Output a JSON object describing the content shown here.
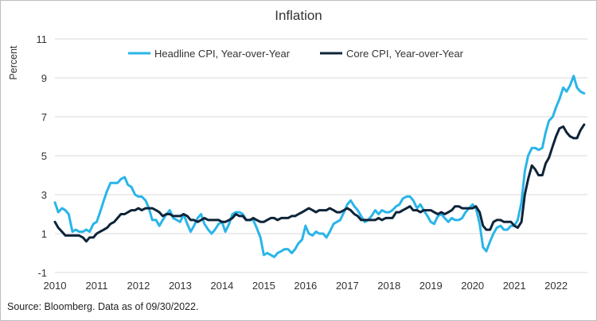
{
  "chart_data": {
    "type": "line",
    "title": "Inflation",
    "xlabel": "",
    "ylabel": "Percent",
    "xlim": [
      2010,
      2022.75
    ],
    "ylim": [
      -1,
      11
    ],
    "y_ticks": [
      "11",
      "9",
      "7",
      "5",
      "3",
      "1",
      "-1"
    ],
    "x_ticks": [
      "2010",
      "2011",
      "2012",
      "2013",
      "2014",
      "2015",
      "2016",
      "2017",
      "2018",
      "2019",
      "2020",
      "2021",
      "2022"
    ],
    "grid": "horizontal",
    "legend": "top-center",
    "series": [
      {
        "name": "Headline CPI, Year-over-Year",
        "color": "#29b5e8",
        "points": [
          [
            2010.0,
            2.6
          ],
          [
            2010.08,
            2.1
          ],
          [
            2010.17,
            2.3
          ],
          [
            2010.25,
            2.2
          ],
          [
            2010.33,
            2.0
          ],
          [
            2010.42,
            1.1
          ],
          [
            2010.5,
            1.2
          ],
          [
            2010.58,
            1.1
          ],
          [
            2010.67,
            1.1
          ],
          [
            2010.75,
            1.2
          ],
          [
            2010.83,
            1.1
          ],
          [
            2010.92,
            1.5
          ],
          [
            2011.0,
            1.6
          ],
          [
            2011.08,
            2.1
          ],
          [
            2011.17,
            2.7
          ],
          [
            2011.25,
            3.2
          ],
          [
            2011.33,
            3.6
          ],
          [
            2011.42,
            3.6
          ],
          [
            2011.5,
            3.6
          ],
          [
            2011.58,
            3.8
          ],
          [
            2011.67,
            3.9
          ],
          [
            2011.75,
            3.5
          ],
          [
            2011.83,
            3.4
          ],
          [
            2011.92,
            3.0
          ],
          [
            2012.0,
            2.9
          ],
          [
            2012.08,
            2.9
          ],
          [
            2012.17,
            2.7
          ],
          [
            2012.25,
            2.3
          ],
          [
            2012.33,
            1.7
          ],
          [
            2012.42,
            1.7
          ],
          [
            2012.5,
            1.4
          ],
          [
            2012.58,
            1.7
          ],
          [
            2012.67,
            2.0
          ],
          [
            2012.75,
            2.2
          ],
          [
            2012.83,
            1.8
          ],
          [
            2012.92,
            1.7
          ],
          [
            2013.0,
            1.6
          ],
          [
            2013.08,
            2.0
          ],
          [
            2013.17,
            1.5
          ],
          [
            2013.25,
            1.1
          ],
          [
            2013.33,
            1.4
          ],
          [
            2013.42,
            1.8
          ],
          [
            2013.5,
            2.0
          ],
          [
            2013.58,
            1.5
          ],
          [
            2013.67,
            1.2
          ],
          [
            2013.75,
            1.0
          ],
          [
            2013.83,
            1.2
          ],
          [
            2013.92,
            1.5
          ],
          [
            2014.0,
            1.6
          ],
          [
            2014.08,
            1.1
          ],
          [
            2014.17,
            1.5
          ],
          [
            2014.25,
            2.0
          ],
          [
            2014.33,
            2.1
          ],
          [
            2014.42,
            2.1
          ],
          [
            2014.5,
            2.0
          ],
          [
            2014.58,
            1.7
          ],
          [
            2014.67,
            1.7
          ],
          [
            2014.75,
            1.7
          ],
          [
            2014.83,
            1.3
          ],
          [
            2014.92,
            0.8
          ],
          [
            2015.0,
            -0.1
          ],
          [
            2015.08,
            0.0
          ],
          [
            2015.17,
            -0.1
          ],
          [
            2015.25,
            -0.2
          ],
          [
            2015.33,
            0.0
          ],
          [
            2015.42,
            0.1
          ],
          [
            2015.5,
            0.2
          ],
          [
            2015.58,
            0.2
          ],
          [
            2015.67,
            0.0
          ],
          [
            2015.75,
            0.2
          ],
          [
            2015.83,
            0.5
          ],
          [
            2015.92,
            0.7
          ],
          [
            2016.0,
            1.4
          ],
          [
            2016.08,
            1.0
          ],
          [
            2016.17,
            0.9
          ],
          [
            2016.25,
            1.1
          ],
          [
            2016.33,
            1.0
          ],
          [
            2016.42,
            1.0
          ],
          [
            2016.5,
            0.8
          ],
          [
            2016.58,
            1.1
          ],
          [
            2016.67,
            1.5
          ],
          [
            2016.75,
            1.6
          ],
          [
            2016.83,
            1.7
          ],
          [
            2016.92,
            2.1
          ],
          [
            2017.0,
            2.5
          ],
          [
            2017.08,
            2.7
          ],
          [
            2017.17,
            2.4
          ],
          [
            2017.25,
            2.2
          ],
          [
            2017.33,
            1.9
          ],
          [
            2017.42,
            1.6
          ],
          [
            2017.5,
            1.7
          ],
          [
            2017.58,
            1.9
          ],
          [
            2017.67,
            2.2
          ],
          [
            2017.75,
            2.0
          ],
          [
            2017.83,
            2.2
          ],
          [
            2017.92,
            2.1
          ],
          [
            2018.0,
            2.1
          ],
          [
            2018.08,
            2.2
          ],
          [
            2018.17,
            2.4
          ],
          [
            2018.25,
            2.5
          ],
          [
            2018.33,
            2.8
          ],
          [
            2018.42,
            2.9
          ],
          [
            2018.5,
            2.9
          ],
          [
            2018.58,
            2.7
          ],
          [
            2018.67,
            2.3
          ],
          [
            2018.75,
            2.5
          ],
          [
            2018.83,
            2.2
          ],
          [
            2018.92,
            1.9
          ],
          [
            2019.0,
            1.6
          ],
          [
            2019.08,
            1.5
          ],
          [
            2019.17,
            1.9
          ],
          [
            2019.25,
            2.0
          ],
          [
            2019.33,
            1.8
          ],
          [
            2019.42,
            1.6
          ],
          [
            2019.5,
            1.8
          ],
          [
            2019.58,
            1.7
          ],
          [
            2019.67,
            1.7
          ],
          [
            2019.75,
            1.8
          ],
          [
            2019.83,
            2.1
          ],
          [
            2019.92,
            2.3
          ],
          [
            2020.0,
            2.5
          ],
          [
            2020.08,
            2.3
          ],
          [
            2020.17,
            1.5
          ],
          [
            2020.25,
            0.3
          ],
          [
            2020.33,
            0.1
          ],
          [
            2020.42,
            0.6
          ],
          [
            2020.5,
            1.0
          ],
          [
            2020.58,
            1.3
          ],
          [
            2020.67,
            1.4
          ],
          [
            2020.75,
            1.2
          ],
          [
            2020.83,
            1.2
          ],
          [
            2020.92,
            1.4
          ],
          [
            2021.0,
            1.4
          ],
          [
            2021.08,
            1.7
          ],
          [
            2021.17,
            2.6
          ],
          [
            2021.25,
            4.2
          ],
          [
            2021.33,
            5.0
          ],
          [
            2021.42,
            5.4
          ],
          [
            2021.5,
            5.4
          ],
          [
            2021.58,
            5.3
          ],
          [
            2021.67,
            5.4
          ],
          [
            2021.75,
            6.2
          ],
          [
            2021.83,
            6.8
          ],
          [
            2021.92,
            7.0
          ],
          [
            2022.0,
            7.5
          ],
          [
            2022.08,
            7.9
          ],
          [
            2022.17,
            8.5
          ],
          [
            2022.25,
            8.3
          ],
          [
            2022.33,
            8.6
          ],
          [
            2022.42,
            9.1
          ],
          [
            2022.5,
            8.5
          ],
          [
            2022.58,
            8.3
          ],
          [
            2022.67,
            8.2
          ]
        ]
      },
      {
        "name": "Core CPI, Year-over-Year",
        "color": "#0d2438",
        "points": [
          [
            2010.0,
            1.6
          ],
          [
            2010.08,
            1.3
          ],
          [
            2010.17,
            1.1
          ],
          [
            2010.25,
            0.9
          ],
          [
            2010.33,
            0.9
          ],
          [
            2010.42,
            0.9
          ],
          [
            2010.5,
            0.9
          ],
          [
            2010.58,
            0.9
          ],
          [
            2010.67,
            0.8
          ],
          [
            2010.75,
            0.6
          ],
          [
            2010.83,
            0.8
          ],
          [
            2010.92,
            0.8
          ],
          [
            2011.0,
            1.0
          ],
          [
            2011.08,
            1.1
          ],
          [
            2011.17,
            1.2
          ],
          [
            2011.25,
            1.3
          ],
          [
            2011.33,
            1.5
          ],
          [
            2011.42,
            1.6
          ],
          [
            2011.5,
            1.8
          ],
          [
            2011.58,
            2.0
          ],
          [
            2011.67,
            2.0
          ],
          [
            2011.75,
            2.1
          ],
          [
            2011.83,
            2.2
          ],
          [
            2011.92,
            2.2
          ],
          [
            2012.0,
            2.3
          ],
          [
            2012.08,
            2.2
          ],
          [
            2012.17,
            2.3
          ],
          [
            2012.25,
            2.3
          ],
          [
            2012.33,
            2.3
          ],
          [
            2012.42,
            2.2
          ],
          [
            2012.5,
            2.1
          ],
          [
            2012.58,
            1.9
          ],
          [
            2012.67,
            2.0
          ],
          [
            2012.75,
            2.0
          ],
          [
            2012.83,
            1.9
          ],
          [
            2012.92,
            1.9
          ],
          [
            2013.0,
            1.9
          ],
          [
            2013.08,
            2.0
          ],
          [
            2013.17,
            1.9
          ],
          [
            2013.25,
            1.7
          ],
          [
            2013.33,
            1.7
          ],
          [
            2013.42,
            1.6
          ],
          [
            2013.5,
            1.7
          ],
          [
            2013.58,
            1.8
          ],
          [
            2013.67,
            1.7
          ],
          [
            2013.75,
            1.7
          ],
          [
            2013.83,
            1.7
          ],
          [
            2013.92,
            1.7
          ],
          [
            2014.0,
            1.6
          ],
          [
            2014.08,
            1.6
          ],
          [
            2014.17,
            1.7
          ],
          [
            2014.25,
            1.8
          ],
          [
            2014.33,
            2.0
          ],
          [
            2014.42,
            1.9
          ],
          [
            2014.5,
            1.9
          ],
          [
            2014.58,
            1.7
          ],
          [
            2014.67,
            1.7
          ],
          [
            2014.75,
            1.8
          ],
          [
            2014.83,
            1.7
          ],
          [
            2014.92,
            1.6
          ],
          [
            2015.0,
            1.6
          ],
          [
            2015.08,
            1.7
          ],
          [
            2015.17,
            1.8
          ],
          [
            2015.25,
            1.8
          ],
          [
            2015.33,
            1.7
          ],
          [
            2015.42,
            1.8
          ],
          [
            2015.5,
            1.8
          ],
          [
            2015.58,
            1.8
          ],
          [
            2015.67,
            1.9
          ],
          [
            2015.75,
            1.9
          ],
          [
            2015.83,
            2.0
          ],
          [
            2015.92,
            2.1
          ],
          [
            2016.0,
            2.2
          ],
          [
            2016.08,
            2.3
          ],
          [
            2016.17,
            2.2
          ],
          [
            2016.25,
            2.1
          ],
          [
            2016.33,
            2.2
          ],
          [
            2016.42,
            2.2
          ],
          [
            2016.5,
            2.2
          ],
          [
            2016.58,
            2.3
          ],
          [
            2016.67,
            2.2
          ],
          [
            2016.75,
            2.1
          ],
          [
            2016.83,
            2.1
          ],
          [
            2016.92,
            2.2
          ],
          [
            2017.0,
            2.3
          ],
          [
            2017.08,
            2.2
          ],
          [
            2017.17,
            2.0
          ],
          [
            2017.25,
            1.9
          ],
          [
            2017.33,
            1.7
          ],
          [
            2017.42,
            1.7
          ],
          [
            2017.5,
            1.7
          ],
          [
            2017.58,
            1.7
          ],
          [
            2017.67,
            1.7
          ],
          [
            2017.75,
            1.8
          ],
          [
            2017.83,
            1.7
          ],
          [
            2017.92,
            1.8
          ],
          [
            2018.0,
            1.8
          ],
          [
            2018.08,
            1.8
          ],
          [
            2018.17,
            2.1
          ],
          [
            2018.25,
            2.1
          ],
          [
            2018.33,
            2.2
          ],
          [
            2018.42,
            2.3
          ],
          [
            2018.5,
            2.4
          ],
          [
            2018.58,
            2.2
          ],
          [
            2018.67,
            2.2
          ],
          [
            2018.75,
            2.1
          ],
          [
            2018.83,
            2.2
          ],
          [
            2018.92,
            2.2
          ],
          [
            2019.0,
            2.2
          ],
          [
            2019.08,
            2.1
          ],
          [
            2019.17,
            2.0
          ],
          [
            2019.25,
            2.1
          ],
          [
            2019.33,
            2.0
          ],
          [
            2019.42,
            2.1
          ],
          [
            2019.5,
            2.2
          ],
          [
            2019.58,
            2.4
          ],
          [
            2019.67,
            2.4
          ],
          [
            2019.75,
            2.3
          ],
          [
            2019.83,
            2.3
          ],
          [
            2019.92,
            2.3
          ],
          [
            2020.0,
            2.3
          ],
          [
            2020.08,
            2.4
          ],
          [
            2020.17,
            2.1
          ],
          [
            2020.25,
            1.4
          ],
          [
            2020.33,
            1.2
          ],
          [
            2020.42,
            1.2
          ],
          [
            2020.5,
            1.6
          ],
          [
            2020.58,
            1.7
          ],
          [
            2020.67,
            1.7
          ],
          [
            2020.75,
            1.6
          ],
          [
            2020.83,
            1.6
          ],
          [
            2020.92,
            1.6
          ],
          [
            2021.0,
            1.4
          ],
          [
            2021.08,
            1.3
          ],
          [
            2021.17,
            1.6
          ],
          [
            2021.25,
            3.0
          ],
          [
            2021.33,
            3.8
          ],
          [
            2021.42,
            4.5
          ],
          [
            2021.5,
            4.3
          ],
          [
            2021.58,
            4.0
          ],
          [
            2021.67,
            4.0
          ],
          [
            2021.75,
            4.6
          ],
          [
            2021.83,
            4.9
          ],
          [
            2021.92,
            5.5
          ],
          [
            2022.0,
            6.0
          ],
          [
            2022.08,
            6.4
          ],
          [
            2022.17,
            6.5
          ],
          [
            2022.25,
            6.2
          ],
          [
            2022.33,
            6.0
          ],
          [
            2022.42,
            5.9
          ],
          [
            2022.5,
            5.9
          ],
          [
            2022.58,
            6.3
          ],
          [
            2022.67,
            6.6
          ]
        ]
      }
    ]
  },
  "source_note": "Source: Bloomberg. Data as of 09/30/2022."
}
